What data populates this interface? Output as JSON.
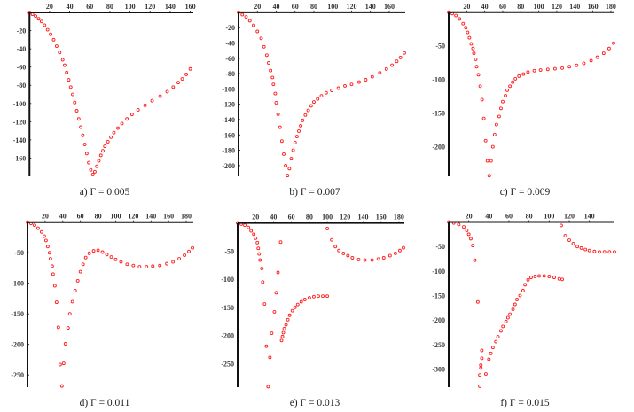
{
  "chart_data": [
    {
      "type": "scatter",
      "title": "a) Γ = 0.005",
      "xlim": [
        -2,
        163
      ],
      "ylim": [
        -180,
        1
      ],
      "xticks": [
        20,
        40,
        60,
        80,
        100,
        120,
        140,
        160
      ],
      "yticks": [
        -20,
        -40,
        -60,
        -80,
        -100,
        -120,
        -140,
        -160
      ],
      "points": [
        [
          0,
          0
        ],
        [
          3,
          -2
        ],
        [
          6,
          -4
        ],
        [
          9,
          -7
        ],
        [
          12,
          -10
        ],
        [
          15,
          -14
        ],
        [
          18,
          -19
        ],
        [
          21,
          -24
        ],
        [
          24,
          -30
        ],
        [
          27,
          -37
        ],
        [
          30,
          -44
        ],
        [
          33,
          -52
        ],
        [
          35,
          -58
        ],
        [
          37,
          -66
        ],
        [
          39,
          -74
        ],
        [
          41,
          -82
        ],
        [
          43,
          -90
        ],
        [
          45,
          -99
        ],
        [
          47,
          -108
        ],
        [
          49,
          -117
        ],
        [
          51,
          -126
        ],
        [
          53,
          -135
        ],
        [
          55,
          -145
        ],
        [
          57,
          -155
        ],
        [
          59,
          -165
        ],
        [
          61,
          -173
        ],
        [
          63,
          -178
        ],
        [
          65,
          -175
        ],
        [
          67,
          -169
        ],
        [
          69,
          -163
        ],
        [
          71,
          -157
        ],
        [
          73,
          -152
        ],
        [
          75,
          -147
        ],
        [
          78,
          -142
        ],
        [
          81,
          -137
        ],
        [
          84,
          -132
        ],
        [
          88,
          -127
        ],
        [
          92,
          -122
        ],
        [
          97,
          -117
        ],
        [
          102,
          -112
        ],
        [
          108,
          -107
        ],
        [
          115,
          -102
        ],
        [
          122,
          -97
        ],
        [
          130,
          -92
        ],
        [
          137,
          -87
        ],
        [
          143,
          -82
        ],
        [
          148,
          -77
        ],
        [
          152,
          -73
        ],
        [
          156,
          -68
        ],
        [
          160,
          -62
        ]
      ]
    },
    {
      "type": "scatter",
      "title": "b) Γ = 0.007",
      "xlim": [
        0,
        177
      ],
      "ylim": [
        -214,
        1
      ],
      "xticks": [
        20,
        40,
        60,
        80,
        100,
        120,
        140,
        160
      ],
      "yticks": [
        -20,
        -40,
        -60,
        -80,
        -100,
        -120,
        -140,
        -160,
        -180,
        -200
      ],
      "points": [
        [
          0,
          0
        ],
        [
          4,
          -3
        ],
        [
          8,
          -6
        ],
        [
          12,
          -11
        ],
        [
          16,
          -17
        ],
        [
          20,
          -25
        ],
        [
          24,
          -34
        ],
        [
          27,
          -45
        ],
        [
          30,
          -56
        ],
        [
          32,
          -66
        ],
        [
          34,
          -76
        ],
        [
          36,
          -85
        ],
        [
          37,
          -94
        ],
        [
          39,
          -106
        ],
        [
          40,
          -118
        ],
        [
          42,
          -133
        ],
        [
          44,
          -150
        ],
        [
          46,
          -168
        ],
        [
          48,
          -185
        ],
        [
          50,
          -200
        ],
        [
          52,
          -213
        ],
        [
          54,
          -204
        ],
        [
          56,
          -191
        ],
        [
          58,
          -180
        ],
        [
          60,
          -170
        ],
        [
          62,
          -162
        ],
        [
          64,
          -155
        ],
        [
          66,
          -148
        ],
        [
          68,
          -141
        ],
        [
          71,
          -134
        ],
        [
          74,
          -128
        ],
        [
          77,
          -122
        ],
        [
          80,
          -117
        ],
        [
          84,
          -113
        ],
        [
          88,
          -109
        ],
        [
          93,
          -105
        ],
        [
          99,
          -102
        ],
        [
          106,
          -99
        ],
        [
          113,
          -96
        ],
        [
          120,
          -94
        ],
        [
          128,
          -91
        ],
        [
          135,
          -88
        ],
        [
          142,
          -84
        ],
        [
          150,
          -79
        ],
        [
          157,
          -74
        ],
        [
          163,
          -69
        ],
        [
          168,
          -64
        ],
        [
          172,
          -59
        ],
        [
          176,
          -53
        ]
      ]
    },
    {
      "type": "scatter",
      "title": "c) Γ = 0.009",
      "xlim": [
        0,
        184
      ],
      "ylim": [
        -244,
        1
      ],
      "xticks": [
        20,
        40,
        60,
        80,
        100,
        120,
        140,
        160,
        180
      ],
      "yticks": [
        -50,
        -100,
        -150,
        -200
      ],
      "points": [
        [
          0,
          0
        ],
        [
          4,
          -2
        ],
        [
          8,
          -5
        ],
        [
          12,
          -10
        ],
        [
          16,
          -17
        ],
        [
          19,
          -23
        ],
        [
          21,
          -30
        ],
        [
          23,
          -38
        ],
        [
          25,
          -47
        ],
        [
          27,
          -54
        ],
        [
          28,
          -61
        ],
        [
          30,
          -70
        ],
        [
          31,
          -81
        ],
        [
          33,
          -93
        ],
        [
          35,
          -110
        ],
        [
          37,
          -130
        ],
        [
          39,
          -158
        ],
        [
          41,
          -191
        ],
        [
          43,
          -221
        ],
        [
          45,
          -243
        ],
        [
          47,
          -221
        ],
        [
          49,
          -200
        ],
        [
          51,
          -182
        ],
        [
          53,
          -167
        ],
        [
          56,
          -155
        ],
        [
          58,
          -143
        ],
        [
          60,
          -133
        ],
        [
          63,
          -124
        ],
        [
          65,
          -116
        ],
        [
          68,
          -110
        ],
        [
          71,
          -104
        ],
        [
          74,
          -99
        ],
        [
          78,
          -95
        ],
        [
          83,
          -92
        ],
        [
          88,
          -89
        ],
        [
          95,
          -87
        ],
        [
          102,
          -86
        ],
        [
          110,
          -85
        ],
        [
          118,
          -84
        ],
        [
          126,
          -83
        ],
        [
          134,
          -81
        ],
        [
          142,
          -79
        ],
        [
          150,
          -76
        ],
        [
          158,
          -72
        ],
        [
          165,
          -67
        ],
        [
          172,
          -61
        ],
        [
          178,
          -54
        ],
        [
          183,
          -46
        ]
      ]
    },
    {
      "type": "scatter",
      "title": "d) Γ = 0.011",
      "xlim": [
        0,
        188
      ],
      "ylim": [
        -270,
        1
      ],
      "xticks": [
        20,
        40,
        60,
        80,
        100,
        120,
        140,
        160,
        180
      ],
      "yticks": [
        -50,
        -100,
        -150,
        -200,
        -250
      ],
      "points": [
        [
          0,
          0
        ],
        [
          4,
          -2
        ],
        [
          8,
          -5
        ],
        [
          12,
          -10
        ],
        [
          16,
          -16
        ],
        [
          19,
          -23
        ],
        [
          21,
          -30
        ],
        [
          23,
          -40
        ],
        [
          25,
          -50
        ],
        [
          26,
          -60
        ],
        [
          28,
          -72
        ],
        [
          29,
          -85
        ],
        [
          31,
          -104
        ],
        [
          33,
          -131
        ],
        [
          35,
          -172
        ],
        [
          37,
          -233
        ],
        [
          39,
          -268
        ],
        [
          41,
          -231
        ],
        [
          43,
          -199
        ],
        [
          46,
          -173
        ],
        [
          48,
          -150
        ],
        [
          51,
          -130
        ],
        [
          54,
          -112
        ],
        [
          57,
          -96
        ],
        [
          60,
          -81
        ],
        [
          63,
          -69
        ],
        [
          66,
          -58
        ],
        [
          70,
          -51
        ],
        [
          75,
          -47
        ],
        [
          80,
          -46
        ],
        [
          85,
          -49
        ],
        [
          90,
          -53
        ],
        [
          95,
          -57
        ],
        [
          100,
          -61
        ],
        [
          106,
          -65
        ],
        [
          113,
          -69
        ],
        [
          120,
          -71
        ],
        [
          127,
          -73
        ],
        [
          135,
          -73
        ],
        [
          142,
          -72
        ],
        [
          150,
          -71
        ],
        [
          158,
          -68
        ],
        [
          165,
          -65
        ],
        [
          172,
          -60
        ],
        [
          178,
          -54
        ],
        [
          183,
          -48
        ],
        [
          187,
          -42
        ]
      ]
    },
    {
      "type": "scatter",
      "title": "e) Γ = 0.013",
      "xlim": [
        0,
        186
      ],
      "ylim": [
        -292,
        1
      ],
      "xticks": [
        20,
        40,
        60,
        80,
        100,
        120,
        140,
        160,
        180
      ],
      "yticks": [
        -50,
        -100,
        -150,
        -200,
        -250
      ],
      "points": [
        [
          0,
          0
        ],
        [
          4,
          -2
        ],
        [
          8,
          -4
        ],
        [
          12,
          -8
        ],
        [
          15,
          -14
        ],
        [
          18,
          -20
        ],
        [
          20,
          -27
        ],
        [
          22,
          -35
        ],
        [
          23,
          -45
        ],
        [
          24,
          -55
        ],
        [
          25,
          -66
        ],
        [
          27,
          -81
        ],
        [
          28,
          -105
        ],
        [
          30,
          -144
        ],
        [
          32,
          -219
        ],
        [
          34,
          -291
        ],
        [
          36,
          -239
        ],
        [
          38,
          -196
        ],
        [
          41,
          -158
        ],
        [
          43,
          -124
        ],
        [
          45,
          -88
        ],
        [
          48,
          -34
        ],
        [
          49,
          -209
        ],
        [
          50,
          -202
        ],
        [
          51,
          -195
        ],
        [
          52,
          -188
        ],
        [
          54,
          -181
        ],
        [
          56,
          -172
        ],
        [
          58,
          -164
        ],
        [
          61,
          -156
        ],
        [
          64,
          -150
        ],
        [
          67,
          -145
        ],
        [
          71,
          -140
        ],
        [
          75,
          -136
        ],
        [
          80,
          -133
        ],
        [
          85,
          -131
        ],
        [
          90,
          -130
        ],
        [
          95,
          -130
        ],
        [
          100,
          -130
        ],
        [
          100,
          -10
        ],
        [
          105,
          -30
        ],
        [
          109,
          -42
        ],
        [
          113,
          -49
        ],
        [
          118,
          -54
        ],
        [
          123,
          -58
        ],
        [
          128,
          -62
        ],
        [
          135,
          -65
        ],
        [
          142,
          -66
        ],
        [
          150,
          -66
        ],
        [
          157,
          -64
        ],
        [
          163,
          -62
        ],
        [
          170,
          -58
        ],
        [
          176,
          -54
        ],
        [
          181,
          -49
        ],
        [
          185,
          -44
        ]
      ]
    },
    {
      "type": "scatter",
      "title": "f) Γ = 0.015",
      "xlim": [
        0,
        165
      ],
      "ylim": [
        -337,
        1
      ],
      "xticks": [
        20,
        40,
        60,
        80,
        100,
        120,
        140
      ],
      "yticks": [
        -50,
        -100,
        -150,
        -200,
        -250,
        -300
      ],
      "points": [
        [
          0,
          0
        ],
        [
          5,
          -2
        ],
        [
          10,
          -5
        ],
        [
          15,
          -10
        ],
        [
          18,
          -17
        ],
        [
          20,
          -25
        ],
        [
          22,
          -34
        ],
        [
          24,
          -48
        ],
        [
          26,
          -78
        ],
        [
          29,
          -163
        ],
        [
          31,
          -335
        ],
        [
          31,
          -312
        ],
        [
          32,
          -298
        ],
        [
          32,
          -292
        ],
        [
          33,
          -278
        ],
        [
          33,
          -262
        ],
        [
          37,
          -310
        ],
        [
          40,
          -280
        ],
        [
          42,
          -268
        ],
        [
          44,
          -256
        ],
        [
          47,
          -244
        ],
        [
          49,
          -234
        ],
        [
          52,
          -222
        ],
        [
          54,
          -213
        ],
        [
          57,
          -203
        ],
        [
          59,
          -195
        ],
        [
          61,
          -188
        ],
        [
          64,
          -178
        ],
        [
          66,
          -168
        ],
        [
          68,
          -158
        ],
        [
          71,
          -150
        ],
        [
          74,
          -140
        ],
        [
          76,
          -128
        ],
        [
          79,
          -118
        ],
        [
          82,
          -113
        ],
        [
          86,
          -111
        ],
        [
          90,
          -110
        ],
        [
          95,
          -110
        ],
        [
          100,
          -111
        ],
        [
          105,
          -113
        ],
        [
          110,
          -116
        ],
        [
          113,
          -117
        ],
        [
          112,
          -7
        ],
        [
          116,
          -28
        ],
        [
          120,
          -37
        ],
        [
          124,
          -44
        ],
        [
          128,
          -50
        ],
        [
          132,
          -53
        ],
        [
          136,
          -56
        ],
        [
          140,
          -58
        ],
        [
          145,
          -60
        ],
        [
          150,
          -61
        ],
        [
          155,
          -61
        ],
        [
          160,
          -61
        ],
        [
          165,
          -61
        ]
      ]
    }
  ],
  "colors": {
    "points": "#ff2020",
    "axes": "#111111"
  }
}
